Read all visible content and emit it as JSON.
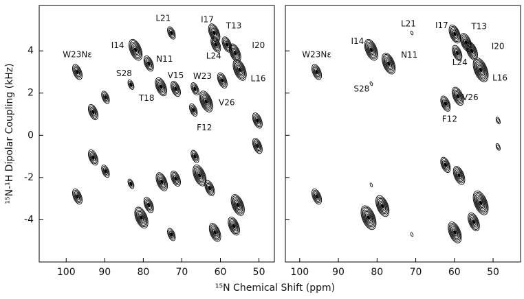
{
  "axis_labels": {
    "x": "¹⁵N Chemical Shift (ppm)",
    "y": "¹⁵N-¹H Dipolar Coupling (kHz)"
  },
  "chart_data": [
    {
      "type": "contour",
      "xlim": [
        107,
        46
      ],
      "ylim": [
        -6,
        6.15
      ],
      "xticks": [
        100,
        90,
        80,
        70,
        60,
        50
      ],
      "yticks": [
        4,
        2,
        0,
        -2,
        -4
      ],
      "peaks": [
        {
          "x": 97.1,
          "y": 3.0,
          "label": "W23Nε"
        },
        {
          "x": 93,
          "y": 1.1
        },
        {
          "x": 89.8,
          "y": 1.8
        },
        {
          "x": 83.2,
          "y": 2.4,
          "label": "S28"
        },
        {
          "x": 82,
          "y": 4.05,
          "label": "I14"
        },
        {
          "x": 78.6,
          "y": 3.4,
          "label": "N11"
        },
        {
          "x": 75.4,
          "y": 2.3,
          "label": "T18"
        },
        {
          "x": 71.6,
          "y": 2.2,
          "label": "V15"
        },
        {
          "x": 72.7,
          "y": 4.85,
          "label": "L21"
        },
        {
          "x": 66.6,
          "y": 2.2,
          "label": "W23"
        },
        {
          "x": 67,
          "y": 1.2,
          "label": "F12"
        },
        {
          "x": 63.7,
          "y": 1.6,
          "label": "V26"
        },
        {
          "x": 61.6,
          "y": 4.85,
          "label": "I17"
        },
        {
          "x": 61.2,
          "y": 4.3,
          "label": "L24"
        },
        {
          "x": 59.5,
          "y": 2.6
        },
        {
          "x": 58.3,
          "y": 4.3,
          "label": "T13"
        },
        {
          "x": 56.2,
          "y": 3.9,
          "label": "I20"
        },
        {
          "x": 55,
          "y": 3.1,
          "label": "L16"
        },
        {
          "x": 50.4,
          "y": 0.7
        },
        {
          "x": 50.4,
          "y": -0.5
        },
        {
          "x": 97.1,
          "y": -2.9
        },
        {
          "x": 93,
          "y": -1.05
        },
        {
          "x": 89.8,
          "y": -1.7
        },
        {
          "x": 83.2,
          "y": -2.3
        },
        {
          "x": 80.5,
          "y": -3.9
        },
        {
          "x": 78.6,
          "y": -3.3
        },
        {
          "x": 75.2,
          "y": -2.2
        },
        {
          "x": 71.6,
          "y": -2.05
        },
        {
          "x": 72.7,
          "y": -4.7
        },
        {
          "x": 66.6,
          "y": -1.0
        },
        {
          "x": 65.4,
          "y": -1.9
        },
        {
          "x": 62.8,
          "y": -2.5
        },
        {
          "x": 61.4,
          "y": -4.6
        },
        {
          "x": 55.5,
          "y": -3.3
        },
        {
          "x": 56.5,
          "y": -4.3
        }
      ]
    },
    {
      "type": "contour",
      "xlim": [
        103.7,
        42.9
      ],
      "ylim": [
        -6,
        6.15
      ],
      "xticks": [
        100,
        90,
        80,
        70,
        60,
        50
      ],
      "yticks": [
        4,
        2,
        0,
        -2,
        -4
      ],
      "peaks": [
        {
          "x": 95.6,
          "y": 3.0,
          "label": "W23Nε"
        },
        {
          "x": 81.5,
          "y": 4.05,
          "label": "I14"
        },
        {
          "x": 77,
          "y": 3.4,
          "label": "N11"
        },
        {
          "x": 81.5,
          "y": 2.45,
          "label": "S28"
        },
        {
          "x": 71,
          "y": 4.85,
          "label": "L21"
        },
        {
          "x": 59.9,
          "y": 4.8,
          "label": "I17"
        },
        {
          "x": 57,
          "y": 4.4,
          "label": "T13"
        },
        {
          "x": 59.3,
          "y": 3.9,
          "label": "L24"
        },
        {
          "x": 55.5,
          "y": 4.0,
          "label": "I20"
        },
        {
          "x": 53.2,
          "y": 3.1,
          "label": "L16"
        },
        {
          "x": 59.1,
          "y": 1.85,
          "label": "V26"
        },
        {
          "x": 62.3,
          "y": 1.5,
          "label": "F12"
        },
        {
          "x": 48.7,
          "y": 0.7
        },
        {
          "x": 48.7,
          "y": -0.55
        },
        {
          "x": 95.6,
          "y": -2.9
        },
        {
          "x": 82.2,
          "y": -3.9
        },
        {
          "x": 78.6,
          "y": -3.35
        },
        {
          "x": 81.5,
          "y": -2.35
        },
        {
          "x": 71,
          "y": -4.7
        },
        {
          "x": 59.9,
          "y": -4.6
        },
        {
          "x": 53.2,
          "y": -3.2
        },
        {
          "x": 55,
          "y": -4.1
        },
        {
          "x": 58.8,
          "y": -1.9
        },
        {
          "x": 62.3,
          "y": -1.4
        }
      ]
    }
  ]
}
